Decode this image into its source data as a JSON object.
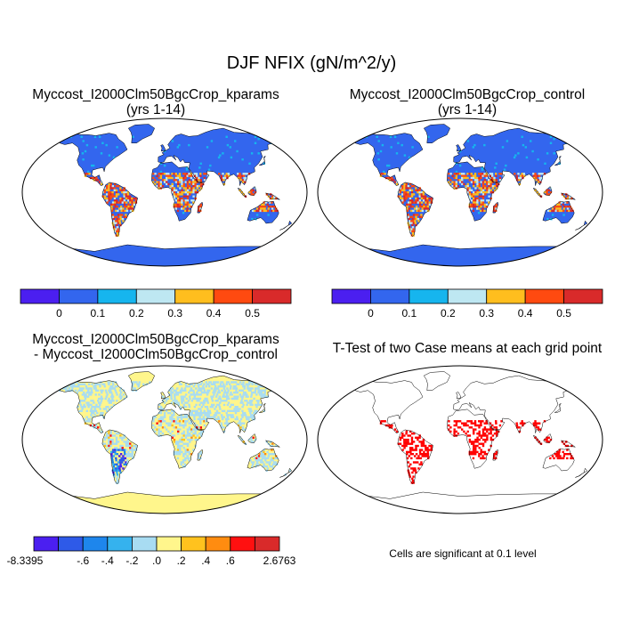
{
  "figure": {
    "title": "DJF NFIX (gN/m^2/y)"
  },
  "panels": [
    {
      "title_line1": "Myccost_I2000Clm50BgcCrop_kparams",
      "title_line2": "(yrs 1-14)",
      "land_color": "#3366ee",
      "field": "absolute"
    },
    {
      "title_line1": "Myccost_I2000Clm50BgcCrop_control",
      "title_line2": "(yrs 1-14)",
      "land_color": "#3366ee",
      "field": "absolute"
    },
    {
      "title_line1": "Myccost_I2000Clm50BgcCrop_kparams",
      "title_line2": "- Myccost_I2000Clm50BgcCrop_control",
      "land_color": "#fff68c",
      "field": "difference"
    },
    {
      "title_line1": "T-Test of two Case means at each grid point",
      "title_line2": "",
      "land_color": "#ffffff",
      "field": "significance"
    }
  ],
  "colorbar_absolute": {
    "colors": [
      "#4b1ff0",
      "#3366ee",
      "#16b5ee",
      "#bee7f2",
      "#ffbe1e",
      "#ff4a10",
      "#d92a2a"
    ],
    "labels": [
      "0",
      "0.1",
      "0.2",
      "0.3",
      "0.4",
      "0.5"
    ]
  },
  "colorbar_difference": {
    "colors": [
      "#4b1ff0",
      "#2e5ae8",
      "#1e86ec",
      "#35b2ee",
      "#a8dcf2",
      "#fff68c",
      "#ffc21e",
      "#ff8c10",
      "#ff1010",
      "#d92a2a"
    ],
    "labels": [
      "-8.3395",
      "-.6",
      "-.4",
      "-.2",
      ".0",
      ".2",
      ".4",
      ".6",
      "2.6763"
    ]
  },
  "significance_note": "Cells are significant at 0.1 level",
  "significance_color": "#ff0000"
}
